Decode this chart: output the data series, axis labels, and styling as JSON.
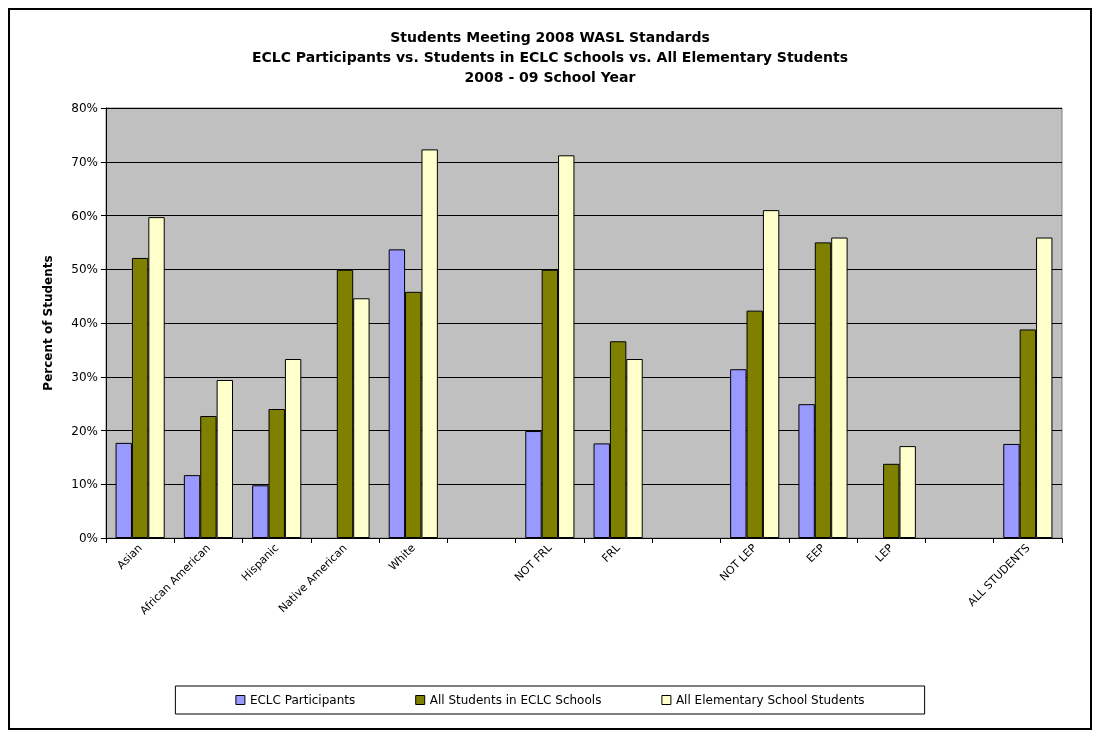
{
  "chart_data": {
    "type": "bar",
    "title": "Students Meeting 2008 WASL Standards\nECLC Participants vs. Students in ECLC Schools vs. All Elementary Students\n2008 - 09 School Year",
    "ylabel": "Percent of Students",
    "categories": [
      "Asian",
      "African American",
      "Hispanic",
      "Native American",
      "White",
      null,
      "NOT FRL",
      "FRL",
      null,
      "NOT LEP",
      "EEP",
      "LEP",
      null,
      "ALL STUDENTS"
    ],
    "series": [
      {
        "name": "ECLC Participants",
        "color": "#9999ff",
        "values": [
          17.7,
          11.7,
          9.8,
          null,
          53.7,
          null,
          19.9,
          17.6,
          null,
          31.4,
          24.9,
          null,
          null,
          17.5
        ]
      },
      {
        "name": "All Students in ECLC Schools",
        "color": "#808000",
        "values": [
          52.1,
          22.7,
          24.0,
          49.9,
          45.8,
          null,
          49.9,
          36.6,
          null,
          42.3,
          55.0,
          13.8,
          null,
          38.8
        ]
      },
      {
        "name": "All Elementary School Students",
        "color": "#ffffcc",
        "values": [
          59.7,
          29.4,
          33.3,
          44.6,
          72.3,
          null,
          71.2,
          33.3,
          null,
          61.0,
          55.9,
          17.1,
          null,
          55.9
        ]
      }
    ],
    "ylim": [
      0,
      80
    ],
    "yticks": [
      {
        "value": 0,
        "label": "0%"
      },
      {
        "value": 10,
        "label": "10%"
      },
      {
        "value": 20,
        "label": "20%"
      },
      {
        "value": 30,
        "label": "30%"
      },
      {
        "value": 40,
        "label": "40%"
      },
      {
        "value": 50,
        "label": "50%"
      },
      {
        "value": 60,
        "label": "60%"
      },
      {
        "value": 70,
        "label": "70%"
      },
      {
        "value": 80,
        "label": "80%"
      }
    ],
    "grid": "y",
    "legend": "bottom"
  }
}
